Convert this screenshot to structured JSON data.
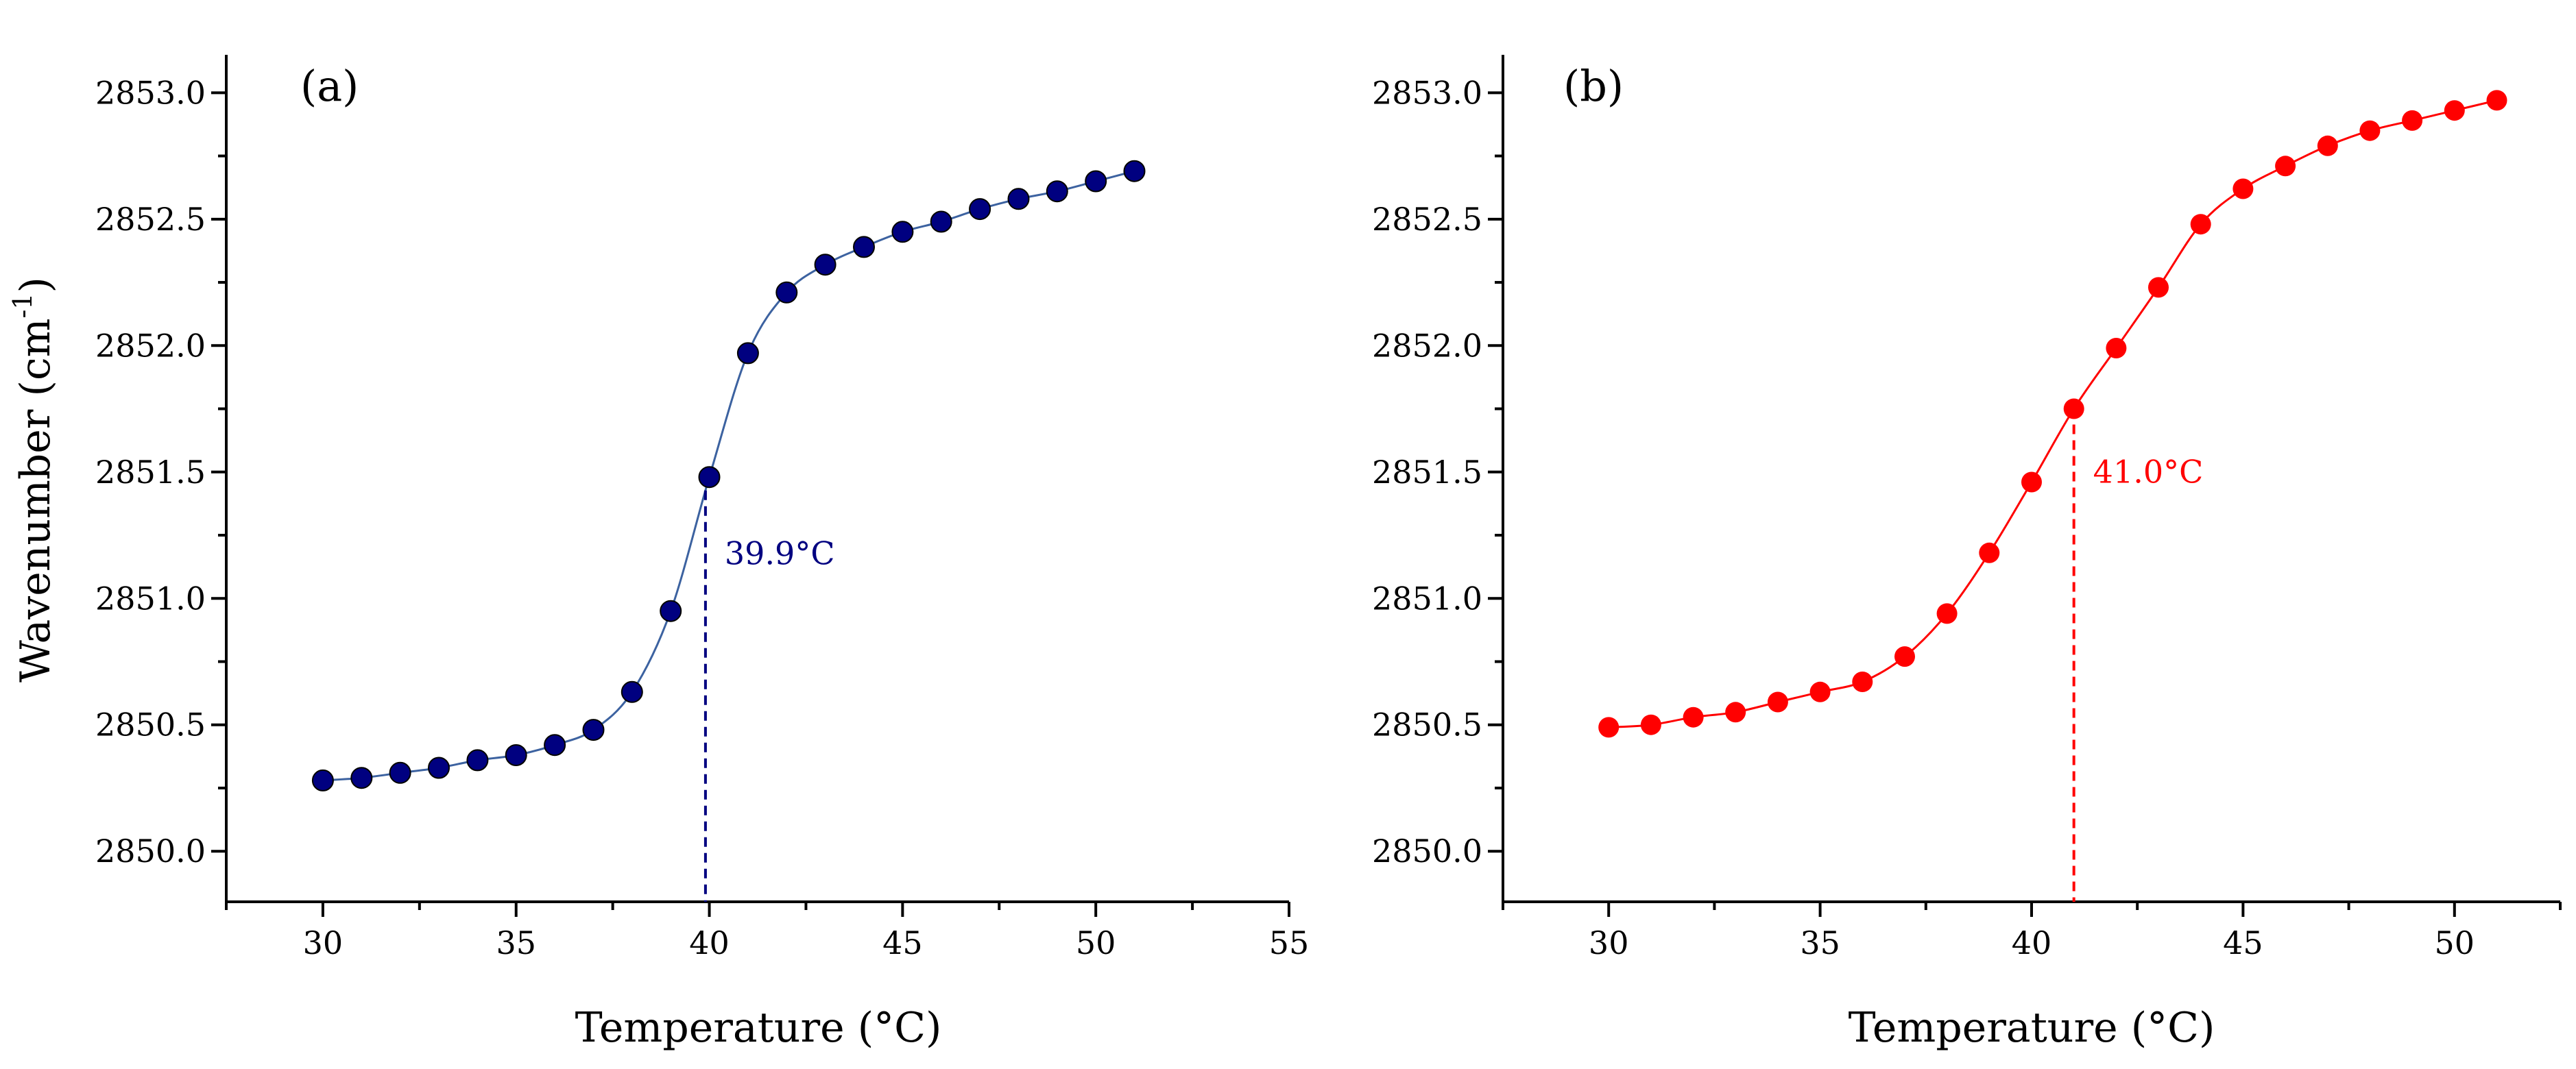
{
  "chart_data": [
    {
      "type": "line",
      "panel": "a",
      "panel_label": "(a)",
      "series_color": "#000080",
      "line_color": "#3c62a0",
      "marker": "circle",
      "xlabel": "Temperature (°C)",
      "ylabel": "Wavenumber (cm",
      "ylabel_sup": "-1",
      "ylabel_end": ")",
      "xlim": [
        27.5,
        55
      ],
      "ylim": [
        2849.8,
        2853.15
      ],
      "xticks": [
        30,
        35,
        40,
        45,
        50,
        55
      ],
      "xtick_labels": [
        "30",
        "35",
        "40",
        "45",
        "50",
        "55"
      ],
      "yticks": [
        2850.0,
        2850.5,
        2851.0,
        2851.5,
        2852.0,
        2852.5,
        2853.0
      ],
      "ytick_labels": [
        "2850.0",
        "2850.5",
        "2851.0",
        "2851.5",
        "2852.0",
        "2852.5",
        "2853.0"
      ],
      "x": [
        30,
        31,
        32,
        33,
        34,
        35,
        36,
        37,
        38,
        39,
        40,
        41,
        42,
        43,
        44,
        45,
        46,
        47,
        48,
        49,
        50,
        51
      ],
      "y": [
        2850.28,
        2850.29,
        2850.31,
        2850.33,
        2850.36,
        2850.38,
        2850.42,
        2850.48,
        2850.63,
        2850.95,
        2851.48,
        2851.97,
        2852.21,
        2852.32,
        2852.39,
        2852.45,
        2852.49,
        2852.54,
        2852.58,
        2852.61,
        2852.65,
        2852.69
      ],
      "transition_temp": 39.9,
      "transition_label": "39.9°C",
      "transition_color": "#000080"
    },
    {
      "type": "line",
      "panel": "b",
      "panel_label": "(b)",
      "series_color": "#ff0000",
      "line_color": "#ff0000",
      "marker": "circle",
      "xlabel": "Temperature (°C)",
      "xlim": [
        27.5,
        52.5
      ],
      "ylim": [
        2849.8,
        2853.15
      ],
      "xticks": [
        30,
        35,
        40,
        45,
        50
      ],
      "xtick_labels": [
        "30",
        "35",
        "40",
        "45",
        "50"
      ],
      "yticks": [
        2850.0,
        2850.5,
        2851.0,
        2851.5,
        2852.0,
        2852.5,
        2853.0
      ],
      "ytick_labels": [
        "2850.0",
        "2850.5",
        "2851.0",
        "2851.5",
        "2852.0",
        "2852.5",
        "2853.0"
      ],
      "x": [
        30,
        31,
        32,
        33,
        34,
        35,
        36,
        37,
        38,
        39,
        40,
        41,
        42,
        43,
        44,
        45,
        46,
        47,
        48,
        49,
        50,
        51
      ],
      "y": [
        2850.49,
        2850.5,
        2850.53,
        2850.55,
        2850.59,
        2850.63,
        2850.67,
        2850.77,
        2850.94,
        2851.18,
        2851.46,
        2851.75,
        2851.99,
        2852.23,
        2852.48,
        2852.62,
        2852.71,
        2852.79,
        2852.85,
        2852.89,
        2852.93,
        2852.97
      ],
      "transition_temp": 41.0,
      "transition_label": "41.0°C",
      "transition_color": "#ff0000"
    }
  ]
}
